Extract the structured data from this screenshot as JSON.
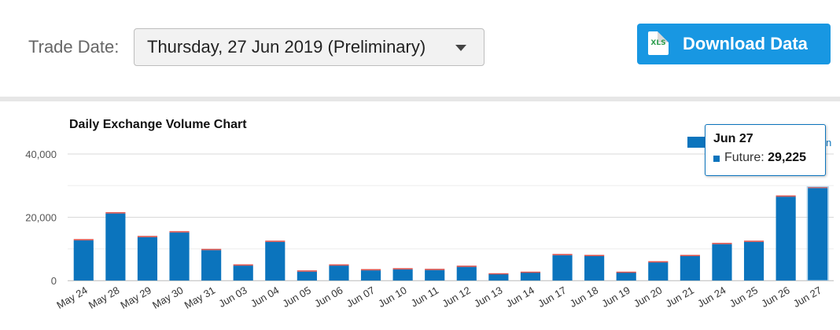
{
  "header": {
    "trade_date_label": "Trade Date:",
    "trade_date_value": "Thursday, 27 Jun 2019 (Preliminary)",
    "download_label": "Download Data",
    "xls_icon_text": "XLS"
  },
  "colors": {
    "accent": "#1897e2",
    "future_bar": "#0b74bd",
    "other_series": "#d9534f"
  },
  "tooltip": {
    "title": "Jun 27",
    "series_label": "Future: ",
    "series_value": "29,225"
  },
  "legend": {
    "partial_text": "n"
  },
  "chart_data": {
    "type": "bar",
    "title": "Daily Exchange Volume Chart",
    "xlabel": "",
    "ylabel": "",
    "ylim": [
      0,
      40000
    ],
    "yticks": [
      0,
      20000,
      40000
    ],
    "ytick_labels": [
      "0",
      "20,000",
      "40,000"
    ],
    "stacked": true,
    "grid": true,
    "categories": [
      "May 24",
      "May 28",
      "May 29",
      "May 30",
      "May 31",
      "Jun 03",
      "Jun 04",
      "Jun 05",
      "Jun 06",
      "Jun 07",
      "Jun 10",
      "Jun 11",
      "Jun 12",
      "Jun 13",
      "Jun 14",
      "Jun 17",
      "Jun 18",
      "Jun 19",
      "Jun 20",
      "Jun 21",
      "Jun 24",
      "Jun 25",
      "Jun 26",
      "Jun 27"
    ],
    "series": [
      {
        "name": "Future",
        "values": [
          12700,
          21200,
          13700,
          15200,
          9600,
          4700,
          12200,
          2800,
          4700,
          3200,
          3500,
          3300,
          4300,
          2000,
          2500,
          8000,
          7700,
          2500,
          5700,
          7700,
          11500,
          12200,
          26500,
          29225
        ]
      },
      {
        "values": [
          400,
          400,
          400,
          400,
          400,
          400,
          400,
          400,
          400,
          400,
          400,
          400,
          400,
          300,
          300,
          400,
          400,
          300,
          400,
          400,
          400,
          400,
          400,
          400
        ]
      }
    ]
  }
}
